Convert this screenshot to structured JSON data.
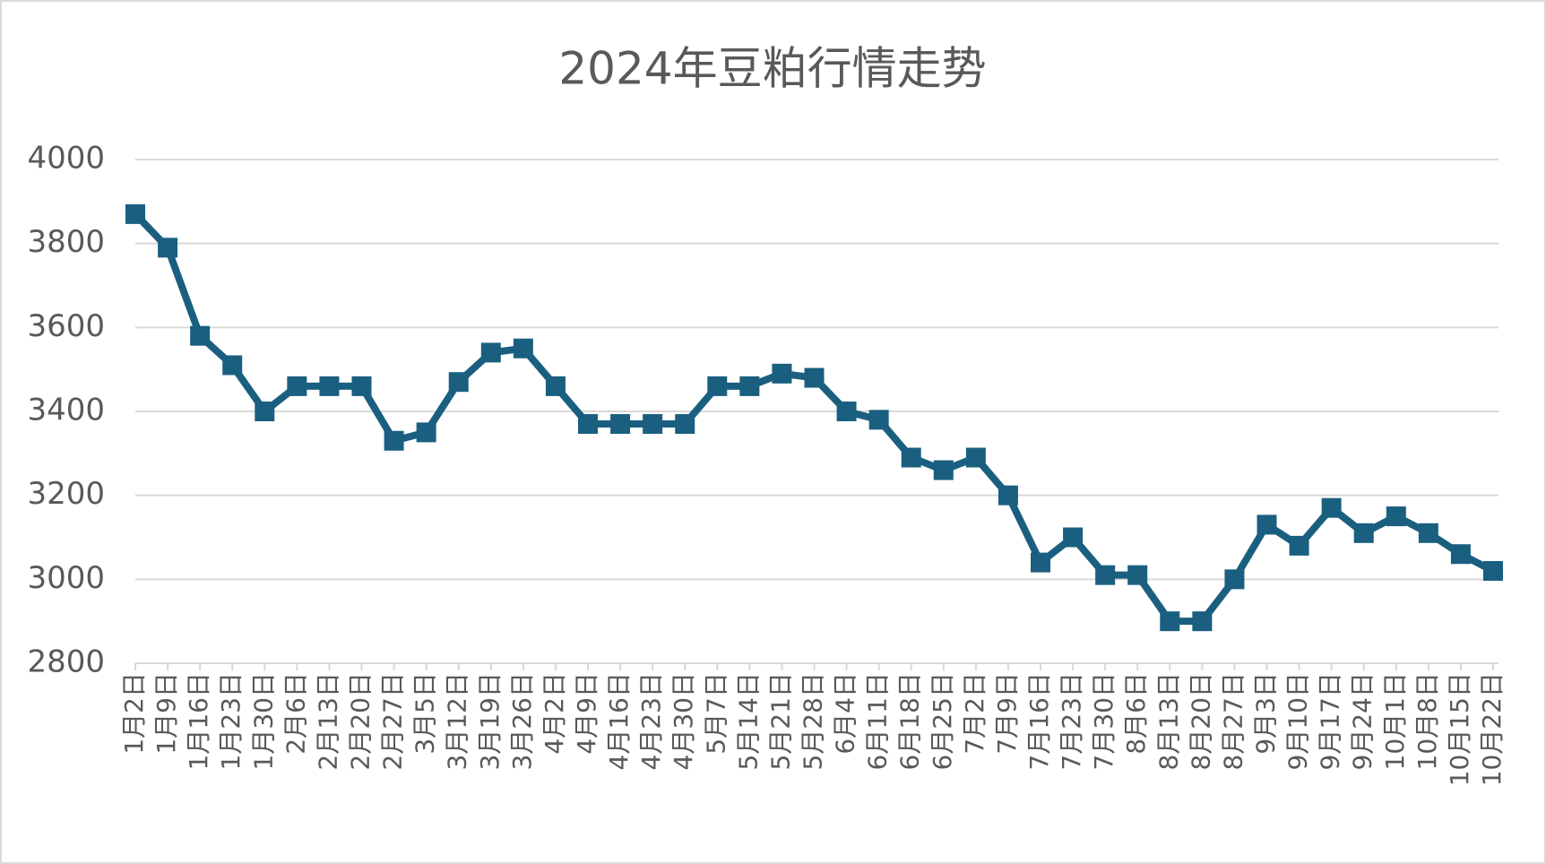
{
  "chart_data": {
    "type": "line",
    "title": "2024年豆粕行情走势",
    "categories": [
      "1月2日",
      "1月9日",
      "1月16日",
      "1月23日",
      "1月30日",
      "2月6日",
      "2月13日",
      "2月20日",
      "2月27日",
      "3月5日",
      "3月12日",
      "3月19日",
      "3月26日",
      "4月2日",
      "4月9日",
      "4月16日",
      "4月23日",
      "4月30日",
      "5月7日",
      "5月14日",
      "5月21日",
      "5月28日",
      "6月4日",
      "6月11日",
      "6月18日",
      "6月25日",
      "7月2日",
      "7月9日",
      "7月16日",
      "7月23日",
      "7月30日",
      "8月6日",
      "8月13日",
      "8月20日",
      "8月27日",
      "9月3日",
      "9月10日",
      "9月17日",
      "9月24日",
      "10月1日",
      "10月8日",
      "10月15日",
      "10月22日"
    ],
    "values": [
      3870,
      3790,
      3580,
      3510,
      3400,
      3460,
      3460,
      3460,
      3330,
      3350,
      3470,
      3540,
      3550,
      3460,
      3370,
      3370,
      3370,
      3370,
      3460,
      3460,
      3490,
      3480,
      3400,
      3380,
      3290,
      3260,
      3290,
      3200,
      3040,
      3100,
      3010,
      3010,
      2900,
      2900,
      3000,
      3130,
      3080,
      3170,
      3110,
      3150,
      3110,
      3060,
      3020
    ],
    "color": "#1b5f80",
    "ylim": [
      2800,
      4000
    ],
    "yticks": [
      2800,
      3000,
      3200,
      3400,
      3600,
      3800,
      4000
    ],
    "grid": true
  }
}
